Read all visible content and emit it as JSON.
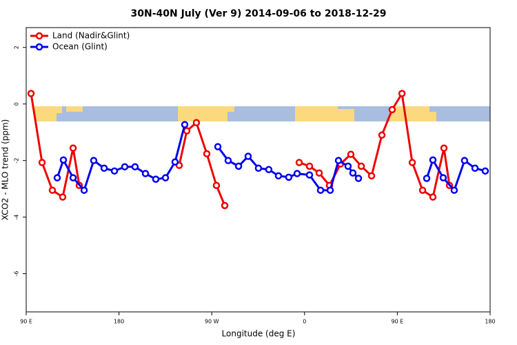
{
  "chart_data": {
    "type": "line",
    "title": "30N-40N July (Ver 9)   2014-09-06 to 2018-12-29",
    "x_label": "Longitude (deg E)",
    "y_label": "XCO2 - MLO trend (ppm)",
    "xlim": [
      90,
      540
    ],
    "ylim": [
      -7.35,
      2.7
    ],
    "xticks": [
      {
        "value": 90,
        "label": "90 E"
      },
      180,
      {
        "value": 270,
        "label": "90 W"
      },
      {
        "value": 360,
        "label": "0"
      },
      {
        "value": 450,
        "label": "90 E"
      },
      {
        "value": 540,
        "label": "180"
      }
    ],
    "yticks": [
      2,
      0,
      -2,
      -4,
      -6
    ],
    "legend": "top-left",
    "series": [
      {
        "name": "Land (Nadir&Glint)",
        "color": "#ee0000",
        "x": [
          94.7,
          105.4,
          115.4,
          125.4,
          135.5,
          141.5,
          null,
          238.4,
          245.8,
          255.1,
          265.2,
          274.5,
          282.6,
          null,
          354.8,
          364.8,
          374.2,
          384.2,
          394.9,
          404.9,
          415,
          425,
          435,
          445,
          454.5,
          464.5,
          474.5,
          484.5,
          495.2,
          500.6
        ],
        "values": [
          0.37,
          -2.07,
          -3.05,
          -3.29,
          -1.56,
          -2.88,
          null,
          -2.17,
          -0.95,
          -0.66,
          -1.76,
          -2.88,
          -3.59,
          null,
          -2.07,
          -2.2,
          -2.44,
          -2.88,
          -2.12,
          -1.78,
          -2.2,
          -2.54,
          -1.1,
          -0.2,
          0.37,
          -2.07,
          -3.05,
          -3.29,
          -1.56,
          -2.88
        ]
      },
      {
        "name": "Ocean (Glint)",
        "color": "#0000ee",
        "x": [
          120.1,
          126.1,
          135.5,
          146.2,
          155.5,
          165.6,
          175.6,
          185.6,
          195.6,
          205.7,
          215.7,
          225.1,
          234.4,
          243.8,
          null,
          275.9,
          285.9,
          296,
          305.3,
          315.3,
          325.3,
          334.7,
          344.7,
          352.8,
          364.8,
          375.5,
          384.9,
          392.9,
          402.2,
          406.9,
          412.3,
          null,
          478.5,
          484.5,
          494.5,
          505.2,
          515.2,
          525.3,
          535.3
        ],
        "values": [
          -2.61,
          -1.98,
          -2.61,
          -3.05,
          -2,
          -2.27,
          -2.37,
          -2.22,
          -2.22,
          -2.46,
          -2.66,
          -2.61,
          -2.05,
          -0.73,
          null,
          -1.51,
          -2,
          -2.2,
          -1.85,
          -2.27,
          -2.32,
          -2.54,
          -2.59,
          -2.46,
          -2.51,
          -3.05,
          -3.05,
          -2,
          -2.2,
          -2.44,
          -2.63,
          null,
          -2.63,
          -1.98,
          -2.61,
          -3.05,
          -2,
          -2.27,
          -2.37
        ]
      }
    ]
  }
}
